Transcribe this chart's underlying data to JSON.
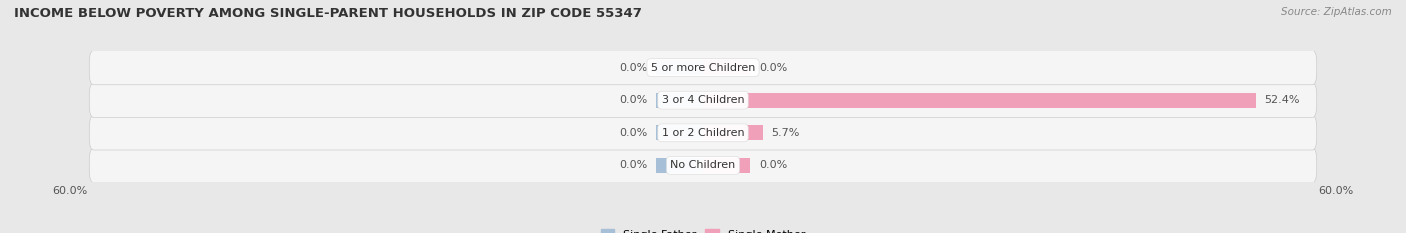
{
  "title": "INCOME BELOW POVERTY AMONG SINGLE-PARENT HOUSEHOLDS IN ZIP CODE 55347",
  "source": "Source: ZipAtlas.com",
  "categories": [
    "No Children",
    "1 or 2 Children",
    "3 or 4 Children",
    "5 or more Children"
  ],
  "single_father": [
    0.0,
    0.0,
    0.0,
    0.0
  ],
  "single_mother": [
    0.0,
    5.7,
    52.4,
    0.0
  ],
  "father_color": "#a8bfd8",
  "mother_color": "#f0a0b8",
  "xlim": 60.0,
  "bar_height": 0.62,
  "min_bar_width": 4.5,
  "bg_color": "#e8e8e8",
  "row_bg": "#f5f5f5",
  "label_fontsize": 8.0,
  "title_fontsize": 9.5,
  "source_fontsize": 7.5,
  "legend_fontsize": 8.0,
  "value_color": "#555555",
  "cat_label_color": "#333333"
}
